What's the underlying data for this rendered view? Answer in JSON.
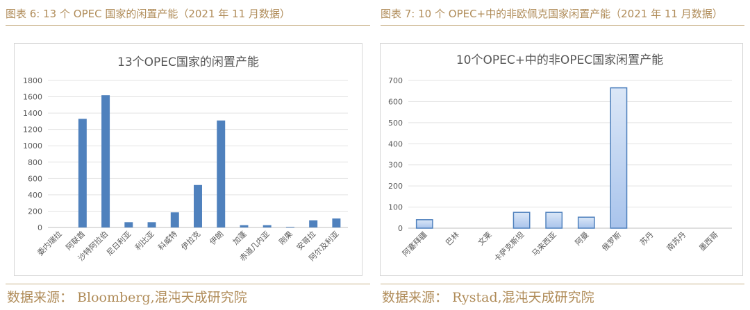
{
  "left": {
    "caption": "图表 6: 13 个 OPEC 国家的闲置产能（2021 年 11 月数据）",
    "source": "数据来源： Bloomberg,混沌天成研究院"
  },
  "right": {
    "caption": "图表 7: 10 个 OPEC+中的非欧佩克国家闲置产能（2021 年 11 月数据）",
    "source": "数据来源： Rystad,混沌天成研究院"
  },
  "colors": {
    "caption": "#b08c59",
    "bar_left": "#4f81bd",
    "bar_right_edge": "#4f81bd",
    "bar_right_fill": "#c6d9f1"
  },
  "chart_data": [
    {
      "type": "bar",
      "title": "13个OPEC国家的闲置产能",
      "categories": [
        "委内瑞拉",
        "阿联酋",
        "沙特阿拉伯",
        "尼日利亚",
        "利比亚",
        "科威特",
        "伊拉克",
        "伊朗",
        "加蓬",
        "赤道几内亚",
        "刚果",
        "安哥拉",
        "阿尔及利亚"
      ],
      "values": [
        0,
        1330,
        1620,
        65,
        65,
        185,
        520,
        1310,
        28,
        28,
        8,
        88,
        110
      ],
      "ylim": [
        0,
        1800
      ],
      "yticks": [
        0,
        200,
        400,
        600,
        800,
        1000,
        1200,
        1400,
        1600,
        1800
      ],
      "grid": true
    },
    {
      "type": "bar",
      "title": "10个OPEC+中的非OPEC国家闲置产能",
      "categories": [
        "阿塞拜疆",
        "巴林",
        "文莱",
        "卡萨克斯坦",
        "马来西亚",
        "阿曼",
        "俄罗斯",
        "苏丹",
        "南苏丹",
        "墨西哥"
      ],
      "values": [
        40,
        0,
        0,
        75,
        75,
        52,
        665,
        0,
        0,
        0
      ],
      "ylim": [
        0,
        700
      ],
      "yticks": [
        0,
        100,
        200,
        300,
        400,
        500,
        600,
        700
      ],
      "grid": true
    }
  ]
}
